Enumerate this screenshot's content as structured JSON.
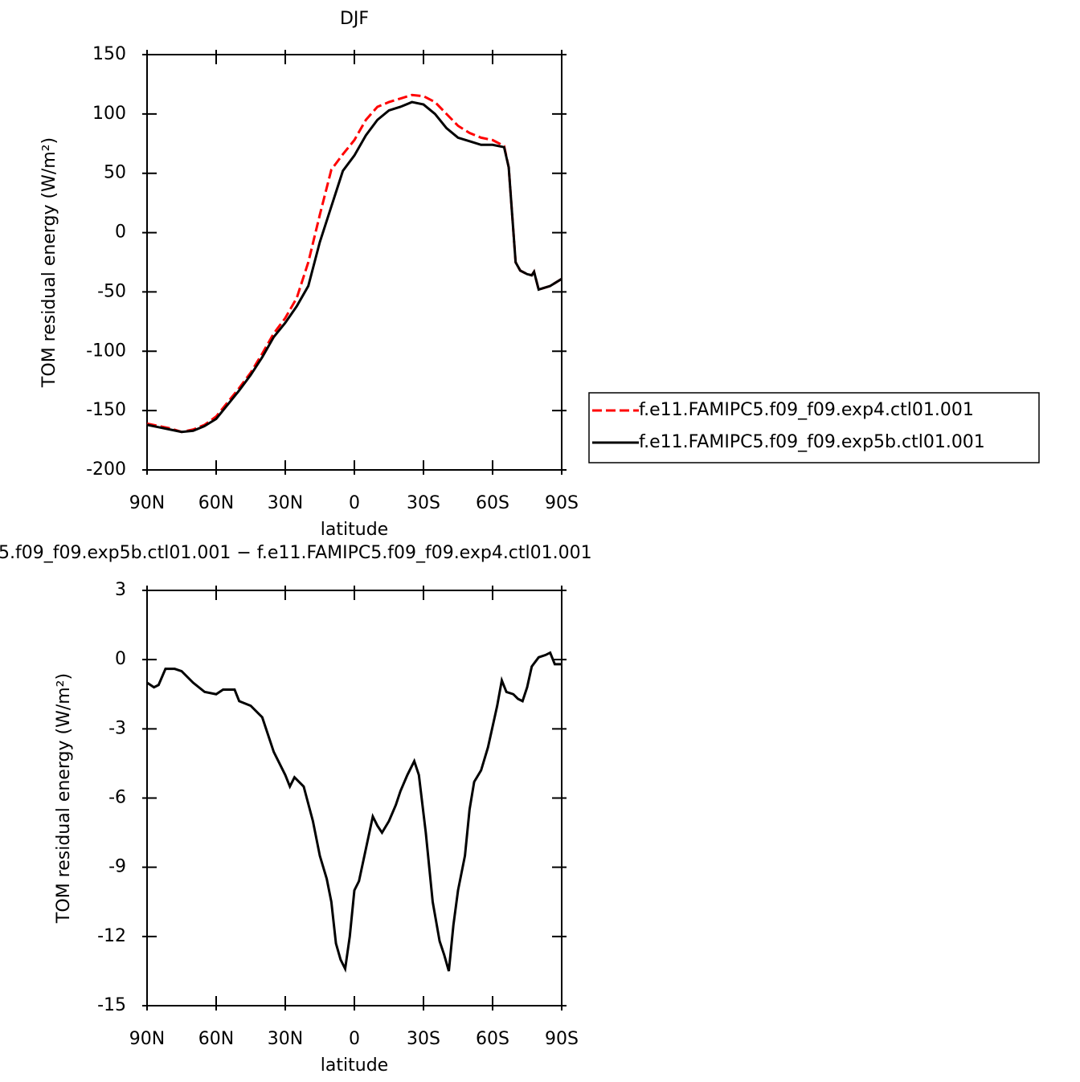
{
  "chart_data": [
    {
      "type": "line",
      "title": "DJF",
      "xlabel": "latitude",
      "ylabel": "TOM residual energy (W/m²)",
      "x": [
        90,
        85,
        80,
        75,
        70,
        65,
        60,
        55,
        50,
        45,
        40,
        35,
        30,
        25,
        20,
        15,
        10,
        5,
        0,
        -5,
        -10,
        -15,
        -20,
        -25,
        -30,
        -35,
        -40,
        -45,
        -50,
        -55,
        -60,
        -65,
        -67,
        -70,
        -72,
        -75,
        -77,
        -78,
        -80,
        -85,
        -90
      ],
      "xlim": [
        90,
        -90
      ],
      "xticks": [
        {
          "value": 90,
          "label": "90N"
        },
        {
          "value": 60,
          "label": "60N"
        },
        {
          "value": 30,
          "label": "30N"
        },
        0,
        {
          "value": -30,
          "label": "30S"
        },
        {
          "value": -60,
          "label": "60S"
        },
        {
          "value": -90,
          "label": "90S"
        }
      ],
      "ylim": [
        -200,
        150
      ],
      "yticks": [
        -200,
        -150,
        -100,
        -50,
        0,
        50,
        100,
        150
      ],
      "legend": "right",
      "series": [
        {
          "name": "f.e11.FAMIPC5.f09_f09.exp4.ctl01.001",
          "color": "#ff0000",
          "line_style": "dashed",
          "values": [
            -161,
            -163,
            -165,
            -168,
            -166,
            -162,
            -155,
            -143,
            -131,
            -118,
            -102,
            -85,
            -72,
            -55,
            -25,
            15,
            53,
            66,
            78,
            95,
            106,
            110,
            113,
            116,
            115,
            110,
            100,
            90,
            84,
            80,
            78,
            73,
            55,
            -25,
            -32,
            -35,
            -36,
            -33,
            -48,
            -45,
            -39
          ]
        },
        {
          "name": "f.e11.FAMIPC5.f09_f09.exp5b.ctl01.001",
          "color": "#000000",
          "line_style": "solid",
          "values": [
            -162,
            -164,
            -166,
            -168,
            -167,
            -163,
            -157,
            -145,
            -133,
            -120,
            -105,
            -88,
            -76,
            -62,
            -45,
            -8,
            22,
            52,
            65,
            82,
            95,
            103,
            106,
            110,
            108,
            100,
            88,
            80,
            77,
            74,
            74,
            72,
            55,
            -25,
            -32,
            -35,
            -36,
            -33,
            -48,
            -45,
            -39
          ]
        }
      ]
    },
    {
      "type": "line",
      "title": "5.f09_f09.exp5b.ctl01.001 − f.e11.FAMIPC5.f09_f09.exp4.ctl01.001",
      "xlabel": "latitude",
      "ylabel": "TOM residual energy (W/m²)",
      "x": [
        90,
        87,
        85,
        82,
        78,
        75,
        70,
        65,
        60,
        57,
        52,
        50,
        45,
        40,
        35,
        30,
        28,
        26,
        22,
        18,
        15,
        12,
        10,
        8,
        6,
        4,
        2,
        0,
        -2,
        -5,
        -8,
        -10,
        -12,
        -15,
        -18,
        -20,
        -23,
        -26,
        -28,
        -31,
        -34,
        -37,
        -39,
        -41,
        -43,
        -45,
        -48,
        -50,
        -52,
        -55,
        -58,
        -62,
        -64,
        -66,
        -69,
        -71,
        -73,
        -75,
        -77,
        -80,
        -83,
        -85,
        -87,
        -90
      ],
      "xlim": [
        90,
        -90
      ],
      "xticks": [
        {
          "value": 90,
          "label": "90N"
        },
        {
          "value": 60,
          "label": "60N"
        },
        {
          "value": 30,
          "label": "30N"
        },
        0,
        {
          "value": -30,
          "label": "30S"
        },
        {
          "value": -60,
          "label": "60S"
        },
        {
          "value": -90,
          "label": "90S"
        }
      ],
      "ylim": [
        -15,
        3
      ],
      "yticks": [
        -15,
        -12,
        -9,
        -6,
        -3,
        0,
        3
      ],
      "series": [
        {
          "color": "#000000",
          "line_style": "solid",
          "values": [
            -1.0,
            -1.2,
            -1.1,
            -0.4,
            -0.4,
            -0.5,
            -1.0,
            -1.4,
            -1.5,
            -1.3,
            -1.3,
            -1.8,
            -2.0,
            -2.5,
            -4.0,
            -5.0,
            -5.5,
            -5.1,
            -5.5,
            -7.0,
            -8.5,
            -9.5,
            -10.5,
            -12.3,
            -13.0,
            -13.4,
            -12.0,
            -10.0,
            -9.6,
            -8.2,
            -6.8,
            -7.2,
            -7.5,
            -7.0,
            -6.3,
            -5.7,
            -5.0,
            -4.4,
            -5.0,
            -7.5,
            -10.5,
            -12.2,
            -12.8,
            -13.5,
            -11.5,
            -10.0,
            -8.5,
            -6.5,
            -5.3,
            -4.8,
            -3.8,
            -2.0,
            -0.9,
            -1.4,
            -1.5,
            -1.7,
            -1.8,
            -1.2,
            -0.3,
            0.1,
            0.2,
            0.3,
            -0.2,
            -0.2
          ]
        }
      ]
    }
  ]
}
